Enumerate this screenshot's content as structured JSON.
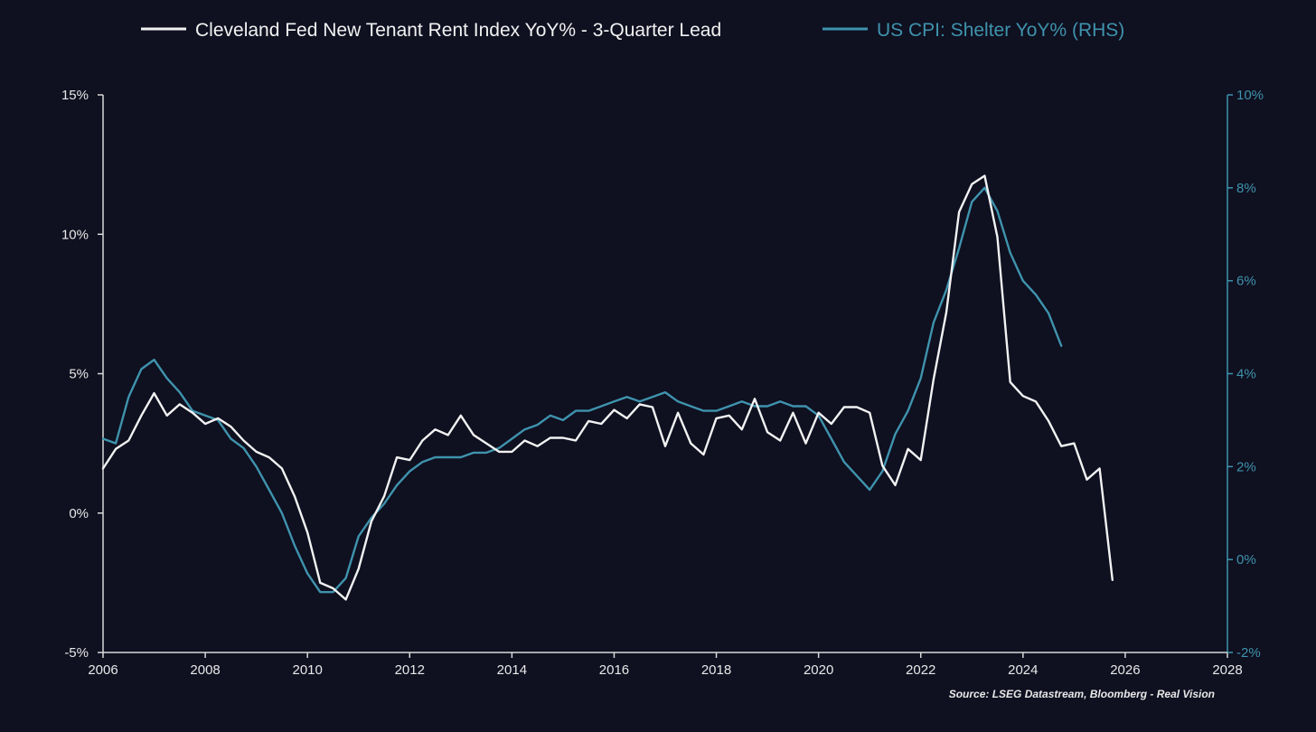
{
  "chart_data": {
    "type": "line",
    "title": "",
    "x_axis": {
      "ticks": [
        "2006",
        "2008",
        "2010",
        "2012",
        "2014",
        "2016",
        "2018",
        "2020",
        "2022",
        "2024",
        "2026",
        "2028"
      ],
      "range": [
        2006,
        2028
      ]
    },
    "y_left": {
      "ticks": [
        "-5%",
        "0%",
        "5%",
        "10%",
        "15%"
      ],
      "range": [
        -5,
        15
      ]
    },
    "y_right": {
      "ticks": [
        "-2%",
        "0%",
        "2%",
        "4%",
        "6%",
        "8%",
        "10%"
      ],
      "range": [
        -2,
        10
      ]
    },
    "grid": false,
    "legend_position": "top",
    "source": "Source: LSEG Datastream, Bloomberg - Real Vision",
    "colors": {
      "background": "#0f1020",
      "white_series": "#f2f2f2",
      "blue_series": "#3f93ad"
    },
    "series": [
      {
        "name": "Cleveland Fed New Tenant Rent Index YoY% - 3-Quarter Lead",
        "axis": "left",
        "color": "#f2f2f2",
        "x": [
          2006.0,
          2006.25,
          2006.5,
          2006.75,
          2007.0,
          2007.25,
          2007.5,
          2007.75,
          2008.0,
          2008.25,
          2008.5,
          2008.75,
          2009.0,
          2009.25,
          2009.5,
          2009.75,
          2010.0,
          2010.25,
          2010.5,
          2010.75,
          2011.0,
          2011.25,
          2011.5,
          2011.75,
          2012.0,
          2012.25,
          2012.5,
          2012.75,
          2013.0,
          2013.25,
          2013.5,
          2013.75,
          2014.0,
          2014.25,
          2014.5,
          2014.75,
          2015.0,
          2015.25,
          2015.5,
          2015.75,
          2016.0,
          2016.25,
          2016.5,
          2016.75,
          2017.0,
          2017.25,
          2017.5,
          2017.75,
          2018.0,
          2018.25,
          2018.5,
          2018.75,
          2019.0,
          2019.25,
          2019.5,
          2019.75,
          2020.0,
          2020.25,
          2020.5,
          2020.75,
          2021.0,
          2021.25,
          2021.5,
          2021.75,
          2022.0,
          2022.25,
          2022.5,
          2022.75,
          2023.0,
          2023.25,
          2023.5,
          2023.75,
          2024.0,
          2024.25,
          2024.5,
          2024.75,
          2025.0,
          2025.25,
          2025.5,
          2025.75
        ],
        "values": [
          1.6,
          2.3,
          2.6,
          3.5,
          4.3,
          3.5,
          3.9,
          3.6,
          3.2,
          3.4,
          3.1,
          2.6,
          2.2,
          2.0,
          1.6,
          0.6,
          -0.7,
          -2.5,
          -2.7,
          -3.1,
          -2.0,
          -0.3,
          0.6,
          2.0,
          1.9,
          2.6,
          3.0,
          2.8,
          3.5,
          2.8,
          2.5,
          2.2,
          2.2,
          2.6,
          2.4,
          2.7,
          2.7,
          2.6,
          3.3,
          3.2,
          3.7,
          3.4,
          3.9,
          3.8,
          2.4,
          3.6,
          2.5,
          2.1,
          3.4,
          3.5,
          3.0,
          4.1,
          2.9,
          2.6,
          3.6,
          2.5,
          3.6,
          3.2,
          3.8,
          3.8,
          3.6,
          1.7,
          1.0,
          2.3,
          1.9,
          4.8,
          7.2,
          10.8,
          11.8,
          12.1,
          9.9,
          4.7,
          4.2,
          4.0,
          3.3,
          2.4,
          2.5,
          1.2,
          1.6,
          -2.4
        ]
      },
      {
        "name": "US CPI: Shelter YoY% (RHS)",
        "axis": "right",
        "color": "#3f93ad",
        "x": [
          2006.0,
          2006.25,
          2006.5,
          2006.75,
          2007.0,
          2007.25,
          2007.5,
          2007.75,
          2008.0,
          2008.25,
          2008.5,
          2008.75,
          2009.0,
          2009.25,
          2009.5,
          2009.75,
          2010.0,
          2010.25,
          2010.5,
          2010.75,
          2011.0,
          2011.25,
          2011.5,
          2011.75,
          2012.0,
          2012.25,
          2012.5,
          2012.75,
          2013.0,
          2013.25,
          2013.5,
          2013.75,
          2014.0,
          2014.25,
          2014.5,
          2014.75,
          2015.0,
          2015.25,
          2015.5,
          2015.75,
          2016.0,
          2016.25,
          2016.5,
          2016.75,
          2017.0,
          2017.25,
          2017.5,
          2017.75,
          2018.0,
          2018.25,
          2018.5,
          2018.75,
          2019.0,
          2019.25,
          2019.5,
          2019.75,
          2020.0,
          2020.25,
          2020.5,
          2020.75,
          2021.0,
          2021.25,
          2021.5,
          2021.75,
          2022.0,
          2022.25,
          2022.5,
          2022.75,
          2023.0,
          2023.25,
          2023.5,
          2023.75,
          2024.0,
          2024.25,
          2024.5,
          2024.75
        ],
        "values": [
          2.6,
          2.5,
          3.5,
          4.1,
          4.3,
          3.9,
          3.6,
          3.2,
          3.1,
          3.0,
          2.6,
          2.4,
          2.0,
          1.5,
          1.0,
          0.3,
          -0.3,
          -0.7,
          -0.7,
          -0.4,
          0.5,
          0.9,
          1.2,
          1.6,
          1.9,
          2.1,
          2.2,
          2.2,
          2.2,
          2.3,
          2.3,
          2.4,
          2.6,
          2.8,
          2.9,
          3.1,
          3.0,
          3.2,
          3.2,
          3.3,
          3.4,
          3.5,
          3.4,
          3.5,
          3.6,
          3.4,
          3.3,
          3.2,
          3.2,
          3.3,
          3.4,
          3.3,
          3.3,
          3.4,
          3.3,
          3.3,
          3.1,
          2.6,
          2.1,
          1.8,
          1.5,
          1.9,
          2.7,
          3.2,
          3.9,
          5.1,
          5.8,
          6.7,
          7.7,
          8.0,
          7.5,
          6.6,
          6.0,
          5.7,
          5.3,
          4.6
        ]
      }
    ]
  }
}
